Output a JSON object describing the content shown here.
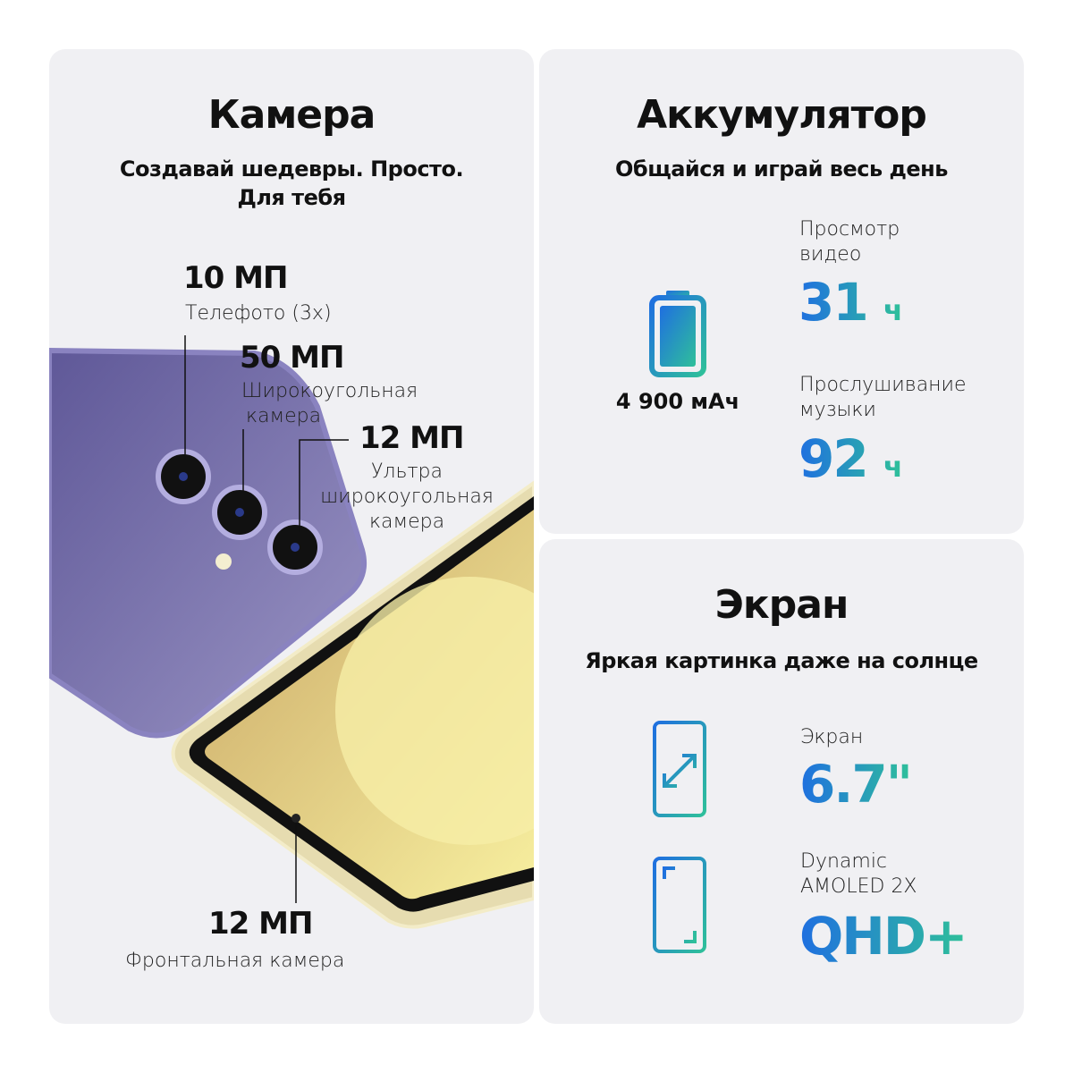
{
  "camera": {
    "title": "Камера",
    "subtitle_line1": "Создавай шедевры. Просто.",
    "subtitle_line2": "Для тебя",
    "tele": {
      "mp": "10 МП",
      "label": "Телефото (3x)"
    },
    "wide": {
      "mp": "50 МП",
      "label_line1": "Широкоугольная",
      "label_line2": "камера"
    },
    "ultra": {
      "mp": "12 МП",
      "label_line1": "Ультра",
      "label_line2": "широкоугольная",
      "label_line3": "камера"
    },
    "front": {
      "mp": "12 МП",
      "label": "Фронтальная камера"
    },
    "phone_back_color": "#7a72b0",
    "phone_front_color": "#efe6bf"
  },
  "battery": {
    "title": "Аккумулятор",
    "subtitle": "Общайся и играй весь день",
    "capacity": "4 900 мАч",
    "video": {
      "label_line1": "Просмотр",
      "label_line2": "видео",
      "value": "31",
      "unit": "ч"
    },
    "music": {
      "label_line1": "Прослушивание",
      "label_line2": "музыки",
      "value": "92",
      "unit": "ч"
    },
    "icon": "battery-icon"
  },
  "screen": {
    "title": "Экран",
    "subtitle": "Яркая картинка даже на солнце",
    "size": {
      "label": "Экран",
      "value": "6.7\""
    },
    "display": {
      "label_line1": "Dynamic",
      "label_line2": "AMOLED 2X",
      "value": "QHD+"
    }
  },
  "colors": {
    "gradient_start": "#1f6fe0",
    "gradient_end": "#2fc09a",
    "card_bg": "#f0f0f3"
  }
}
